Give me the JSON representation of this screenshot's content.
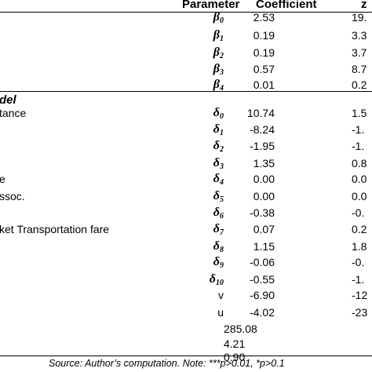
{
  "table": {
    "headers": {
      "parameter": "Parameter",
      "coefficient": "Coefficient",
      "z": "z"
    },
    "section_label": "del",
    "row_labels": [
      {
        "text": "tance",
        "row": 5
      },
      {
        "text": "e",
        "row": 9
      },
      {
        "text": "ssoc.",
        "row": 10
      },
      {
        "text": "ket Transportation fare",
        "row": 12
      }
    ],
    "rows": [
      {
        "sym": "β",
        "sub": "0",
        "coef": "2.53",
        "z": "19."
      },
      {
        "sym": "β",
        "sub": "1",
        "coef": "0.19",
        "z": "3.3"
      },
      {
        "sym": "β",
        "sub": "2",
        "coef": "0.19",
        "z": "3.7"
      },
      {
        "sym": "β",
        "sub": "3",
        "coef": "0.57",
        "z": "8.7"
      },
      {
        "sym": "β",
        "sub": "4",
        "coef": "0.01",
        "z": "0.2"
      },
      {
        "sym": "δ",
        "sub": "0",
        "coef": "10.74",
        "z": "1.5"
      },
      {
        "sym": "δ",
        "sub": "1",
        "coef": "-8.24",
        "z": "-1."
      },
      {
        "sym": "δ",
        "sub": "2",
        "coef": "-1.95",
        "z": "-1."
      },
      {
        "sym": "δ",
        "sub": "3",
        "coef": "1.35",
        "z": "0.8"
      },
      {
        "sym": "δ",
        "sub": "4",
        "coef": "0.00",
        "z": "0.0"
      },
      {
        "sym": "δ",
        "sub": "5",
        "coef": "0.00",
        "z": "0.0"
      },
      {
        "sym": "δ",
        "sub": "6",
        "coef": "-0.38",
        "z": "-0."
      },
      {
        "sym": "δ",
        "sub": "7",
        "coef": "0.07",
        "z": "0.2"
      },
      {
        "sym": "δ",
        "sub": "8",
        "coef": "1.15",
        "z": "1.8"
      },
      {
        "sym": "δ",
        "sub": "9",
        "coef": "-0.06",
        "z": "-0."
      },
      {
        "sym": "δ",
        "sub": "10",
        "coef": "-0.55",
        "z": "-1."
      },
      {
        "sym": "v",
        "sub": "",
        "coef": "-6.90",
        "z": "-12"
      },
      {
        "sym": "u",
        "sub": "",
        "coef": "-4.02",
        "z": "-23"
      }
    ],
    "stats": [
      "285.08",
      "4.21",
      "0.90"
    ]
  },
  "footer": "Source: Author’s computation. Note: ***p>0.01, *p>0.1"
}
